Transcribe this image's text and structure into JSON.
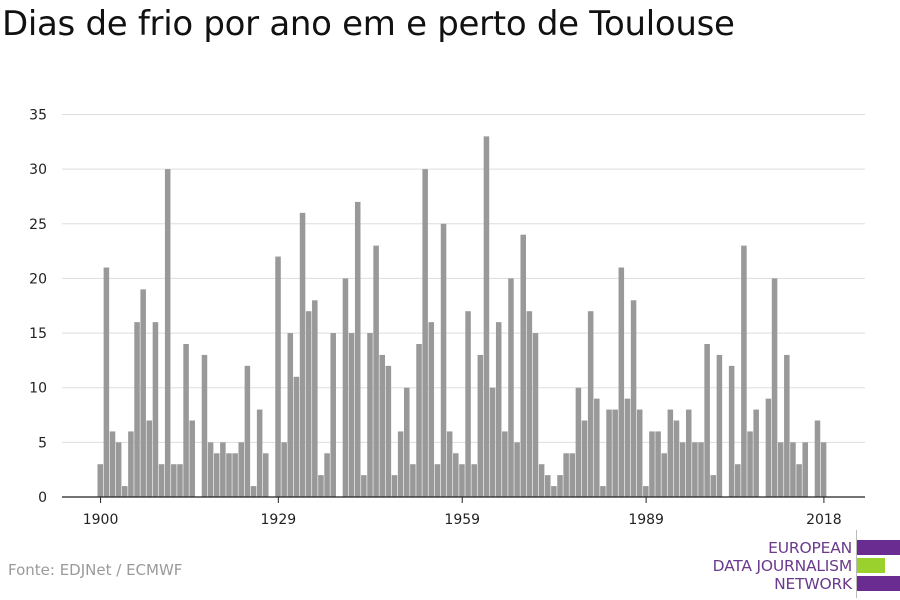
{
  "title": "Dias de frio por ano em e perto de Toulouse",
  "source": "Fonte: EDJNet / ECMWF",
  "logo": {
    "lines": [
      "EUROPEAN",
      "DATA JOURNALISM",
      "NETWORK"
    ],
    "colors": {
      "purple": "#6b2c91",
      "green": "#9bd12d"
    }
  },
  "chart_data": {
    "type": "bar",
    "x_start": 1900,
    "values": [
      3,
      21,
      6,
      5,
      1,
      6,
      16,
      19,
      7,
      16,
      3,
      30,
      3,
      3,
      14,
      7,
      0,
      13,
      5,
      4,
      5,
      4,
      4,
      5,
      12,
      1,
      8,
      4,
      0,
      22,
      5,
      15,
      11,
      26,
      17,
      18,
      2,
      4,
      15,
      0,
      20,
      15,
      27,
      2,
      15,
      23,
      13,
      12,
      2,
      6,
      10,
      3,
      14,
      30,
      16,
      3,
      25,
      6,
      4,
      3,
      17,
      3,
      13,
      33,
      10,
      16,
      6,
      20,
      5,
      24,
      17,
      15,
      3,
      2,
      1,
      2,
      4,
      4,
      10,
      7,
      17,
      9,
      1,
      8,
      8,
      21,
      9,
      18,
      8,
      1,
      6,
      6,
      4,
      8,
      7,
      5,
      8,
      5,
      5,
      14,
      2,
      13,
      0,
      12,
      3,
      23,
      6,
      8,
      0,
      9,
      20,
      5,
      13,
      5,
      3,
      5,
      0,
      7,
      5
    ],
    "xticks": [
      1900,
      1929,
      1959,
      1989,
      2018
    ],
    "yticks": [
      0,
      5,
      10,
      15,
      20,
      25,
      30,
      35
    ],
    "ylim": [
      0,
      35
    ],
    "bar_color": "#999999",
    "grid": true
  }
}
